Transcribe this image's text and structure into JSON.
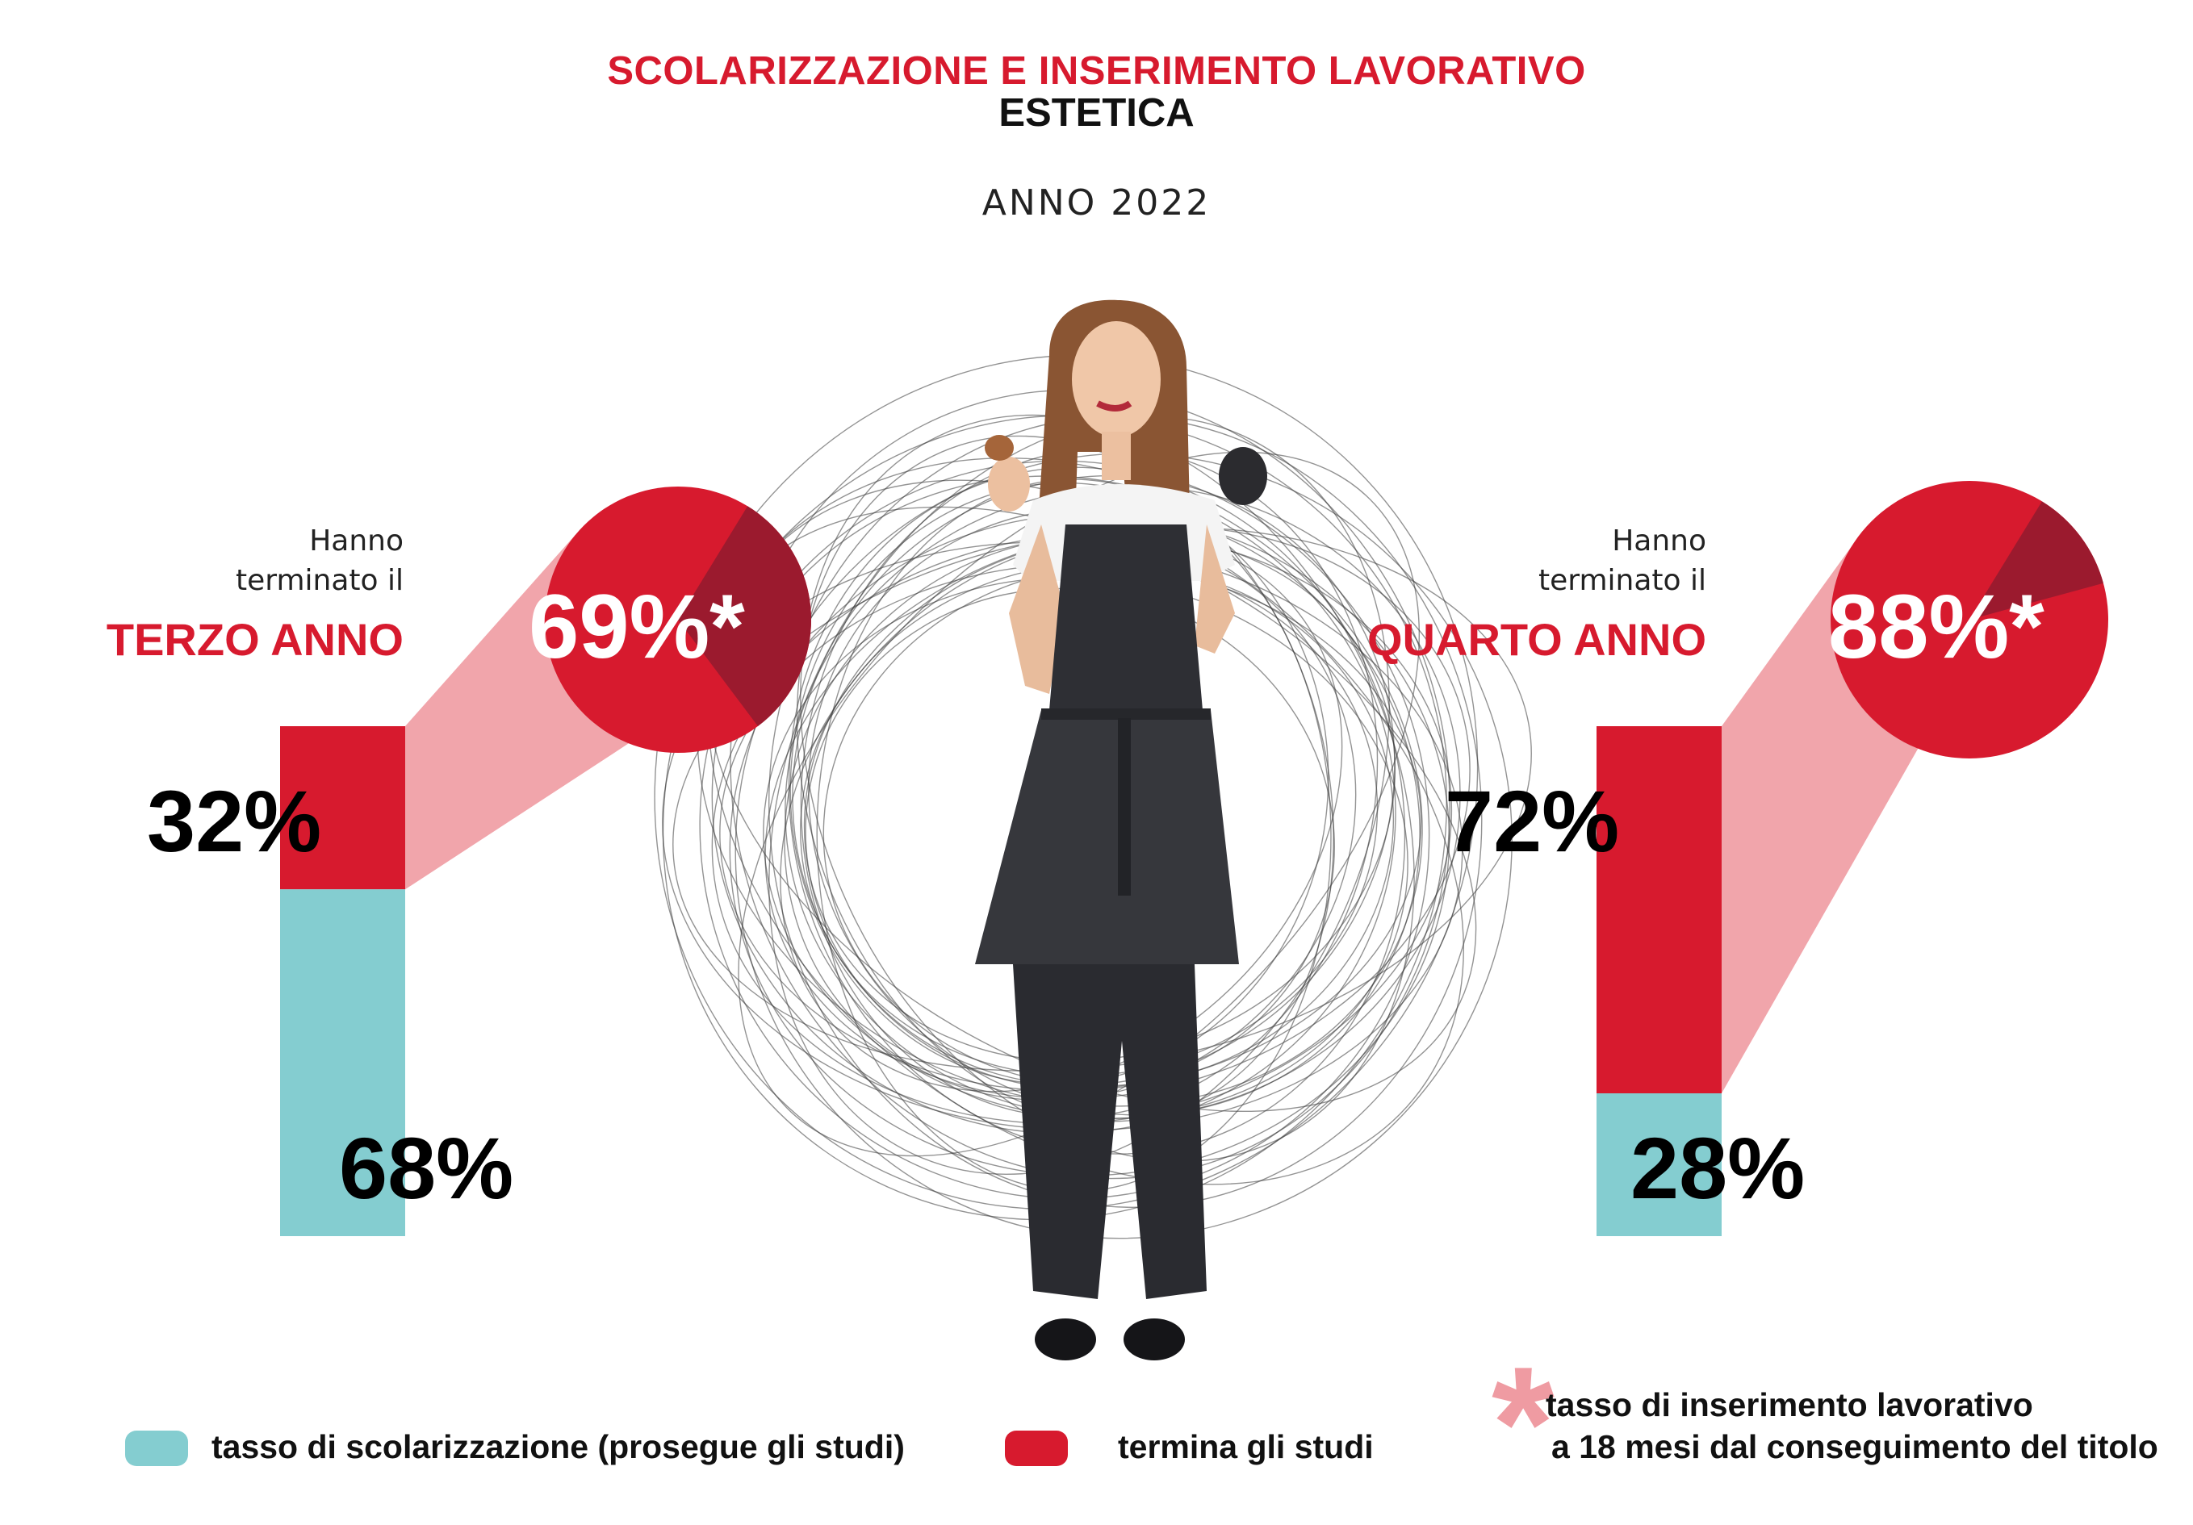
{
  "header": {
    "title": "SCOLARIZZAZIONE E INSERIMENTO LAVORATIVO",
    "subtitle": "ESTETICA",
    "year": "ANNO 2022"
  },
  "colors": {
    "red": "#d71a2e",
    "dark_red": "#9b1a2e",
    "teal": "#84cdd0",
    "pink": "#ef9ba2"
  },
  "chart_data": [
    {
      "type": "bar",
      "orientation": "stacked-vertical",
      "side_label_line1": "Hanno",
      "side_label_line2": "terminato il",
      "side_label_strong": "TERZO ANNO",
      "segments": [
        {
          "series": "termina gli studi",
          "value": 32,
          "label": "32%"
        },
        {
          "series": "tasso di scolarizzazione (prosegue gli studi)",
          "value": 68,
          "label": "68%"
        }
      ],
      "pie": {
        "type": "pie",
        "value": 69,
        "label": "69%*",
        "slices": [
          {
            "value": 69
          },
          {
            "value": 31
          }
        ]
      }
    },
    {
      "type": "bar",
      "orientation": "stacked-vertical",
      "side_label_line1": "Hanno",
      "side_label_line2": "terminato il",
      "side_label_strong": "QUARTO ANNO",
      "segments": [
        {
          "series": "termina gli studi",
          "value": 72,
          "label": "72%"
        },
        {
          "series": "tasso di scolarizzazione (prosegue gli studi)",
          "value": 28,
          "label": "28%"
        }
      ],
      "pie": {
        "type": "pie",
        "value": 88,
        "label": "88%*",
        "slices": [
          {
            "value": 88
          },
          {
            "value": 12
          }
        ]
      }
    }
  ],
  "legend": {
    "scolarizzazione": "tasso di scolarizzazione (prosegue gli studi)",
    "termina": "termina gli studi",
    "asterisk": "*",
    "note_line1": "tasso di inserimento lavorativo",
    "note_line2": "a 18 mesi dal conseguimento del titolo"
  },
  "illustration": {
    "figure": "woman-in-black-apron-holding-brush-and-compact",
    "background": "scribble-circles"
  }
}
